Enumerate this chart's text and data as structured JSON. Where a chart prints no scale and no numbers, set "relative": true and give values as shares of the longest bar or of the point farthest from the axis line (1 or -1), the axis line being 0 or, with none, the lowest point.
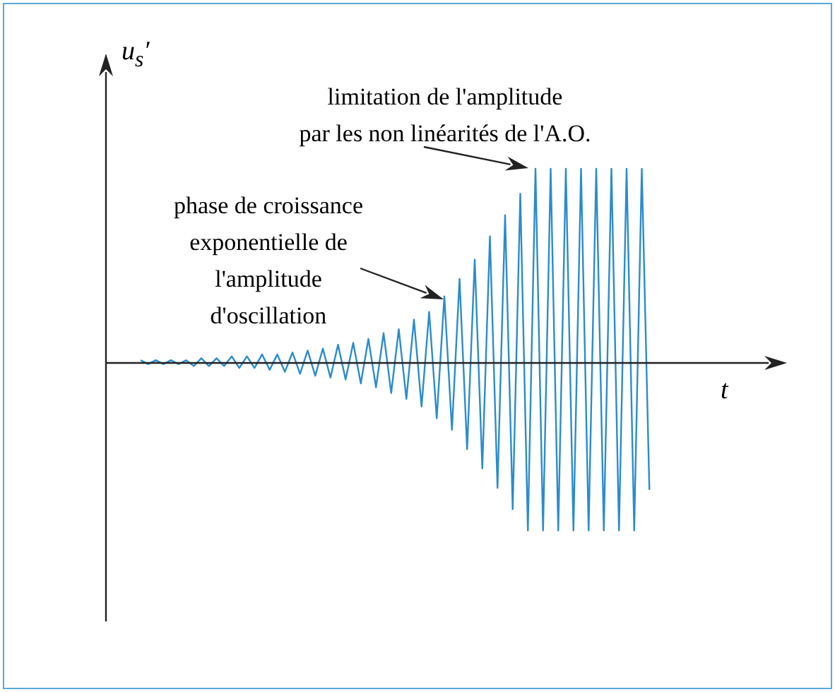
{
  "chart_data": {
    "type": "line",
    "relative": true,
    "xlabel": "t",
    "ylabel": "u$_{s}$′",
    "annotations": [
      "phase de croissance\nexponentielle de\nl'amplitude\nd'oscillation",
      "limitation de l'amplitude\npar les non linéarités de l'A.O."
    ],
    "categories": [
      null,
      null,
      null,
      null,
      null,
      null,
      null,
      null,
      null,
      null,
      null,
      null,
      null,
      null,
      null,
      null,
      null,
      null,
      null,
      null,
      null,
      null,
      null,
      null,
      null,
      null,
      null,
      null,
      null,
      null,
      null,
      null,
      null,
      null,
      null,
      null,
      null,
      null,
      null,
      null,
      null,
      null,
      null,
      null,
      null,
      null,
      null,
      null,
      null,
      null,
      null,
      null,
      null,
      null,
      null,
      null,
      null,
      null,
      null,
      null,
      null,
      null,
      null,
      null,
      null,
      null,
      null,
      null,
      null,
      null,
      null,
      null,
      null,
      null,
      null,
      null,
      null,
      null,
      null,
      null,
      null,
      null,
      null,
      null,
      null,
      null,
      null,
      null,
      null
    ],
    "series": [
      {
        "color": "#2b8ccc",
        "values": [
          null,
          null,
          null,
          null,
          0.01,
          -0.01,
          0.01,
          -0.01,
          0.01,
          -0.01,
          0.01,
          -0.02,
          0.02,
          -0.02,
          0.02,
          -0.02,
          0.03,
          -0.03,
          0.03,
          -0.03,
          0.04,
          -0.04,
          0.04,
          -0.05,
          0.05,
          -0.06,
          0.06,
          -0.07,
          0.07,
          -0.08,
          0.09,
          -0.09,
          0.1,
          -0.11,
          0.12,
          -0.13,
          0.15,
          -0.16,
          0.17,
          -0.19,
          0.22,
          -0.23,
          0.26,
          -0.29,
          0.34,
          -0.35,
          0.43,
          -0.45,
          0.53,
          -0.55,
          0.65,
          -0.65,
          0.76,
          -0.76,
          0.87,
          -0.87,
          1,
          -0.87,
          1,
          -0.87,
          1,
          -0.87,
          1,
          -0.87,
          1,
          -0.87,
          1,
          -0.87,
          1,
          -0.87,
          1,
          -0.66,
          null,
          null,
          null,
          null,
          null,
          null,
          null,
          null,
          null,
          null,
          null,
          null,
          null,
          null,
          null,
          null,
          null
        ]
      }
    ]
  }
}
